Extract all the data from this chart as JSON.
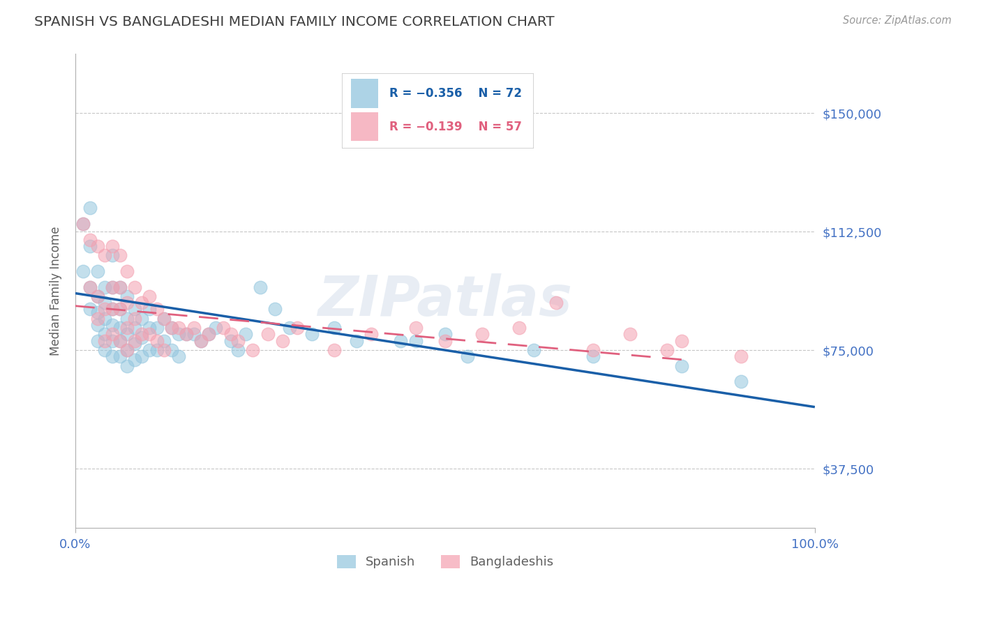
{
  "title": "SPANISH VS BANGLADESHI MEDIAN FAMILY INCOME CORRELATION CHART",
  "source_text": "Source: ZipAtlas.com",
  "ylabel": "Median Family Income",
  "xlim": [
    0.0,
    1.0
  ],
  "ylim": [
    18750,
    168750
  ],
  "yticks": [
    37500,
    75000,
    112500,
    150000
  ],
  "ytick_labels": [
    "$37,500",
    "$75,000",
    "$112,500",
    "$150,000"
  ],
  "xticks": [
    0.0,
    1.0
  ],
  "xtick_labels": [
    "0.0%",
    "100.0%"
  ],
  "spanish_color": "#92c5de",
  "bangladeshi_color": "#f4a0b0",
  "blue_line_color": "#1a5fa8",
  "pink_line_color": "#e0607e",
  "legend_R1": "R = −0.356",
  "legend_N1": "N = 72",
  "legend_R2": "R = −0.139",
  "legend_N2": "N = 57",
  "legend_label1": "Spanish",
  "legend_label2": "Bangladeshis",
  "title_color": "#404040",
  "axis_label_color": "#606060",
  "tick_color": "#4472c4",
  "grid_color": "#c0c0c0",
  "watermark": "ZIPatlas",
  "blue_line_x0": 0.0,
  "blue_line_y0": 93000,
  "blue_line_x1": 1.0,
  "blue_line_y1": 57000,
  "pink_line_x0": 0.0,
  "pink_line_y0": 89000,
  "pink_line_x1": 0.82,
  "pink_line_y1": 72000,
  "spanish_x": [
    0.01,
    0.01,
    0.02,
    0.02,
    0.02,
    0.02,
    0.03,
    0.03,
    0.03,
    0.03,
    0.03,
    0.04,
    0.04,
    0.04,
    0.04,
    0.04,
    0.05,
    0.05,
    0.05,
    0.05,
    0.05,
    0.05,
    0.06,
    0.06,
    0.06,
    0.06,
    0.06,
    0.07,
    0.07,
    0.07,
    0.07,
    0.07,
    0.08,
    0.08,
    0.08,
    0.08,
    0.09,
    0.09,
    0.09,
    0.1,
    0.1,
    0.1,
    0.11,
    0.11,
    0.12,
    0.12,
    0.13,
    0.13,
    0.14,
    0.14,
    0.15,
    0.16,
    0.17,
    0.18,
    0.19,
    0.21,
    0.22,
    0.23,
    0.25,
    0.27,
    0.29,
    0.32,
    0.35,
    0.38,
    0.44,
    0.46,
    0.5,
    0.53,
    0.62,
    0.7,
    0.82,
    0.9
  ],
  "spanish_y": [
    115000,
    100000,
    120000,
    108000,
    95000,
    88000,
    100000,
    92000,
    87000,
    83000,
    78000,
    95000,
    90000,
    85000,
    80000,
    75000,
    105000,
    95000,
    88000,
    83000,
    78000,
    73000,
    95000,
    88000,
    82000,
    78000,
    73000,
    92000,
    85000,
    80000,
    75000,
    70000,
    88000,
    82000,
    77000,
    72000,
    85000,
    79000,
    73000,
    88000,
    82000,
    75000,
    82000,
    75000,
    85000,
    78000,
    82000,
    75000,
    80000,
    73000,
    80000,
    80000,
    78000,
    80000,
    82000,
    78000,
    75000,
    80000,
    95000,
    88000,
    82000,
    80000,
    82000,
    78000,
    78000,
    78000,
    80000,
    73000,
    75000,
    73000,
    70000,
    65000
  ],
  "bangladeshi_x": [
    0.01,
    0.02,
    0.02,
    0.03,
    0.03,
    0.03,
    0.04,
    0.04,
    0.04,
    0.05,
    0.05,
    0.05,
    0.05,
    0.06,
    0.06,
    0.06,
    0.06,
    0.07,
    0.07,
    0.07,
    0.07,
    0.08,
    0.08,
    0.08,
    0.09,
    0.09,
    0.1,
    0.1,
    0.11,
    0.11,
    0.12,
    0.12,
    0.13,
    0.14,
    0.15,
    0.16,
    0.17,
    0.18,
    0.2,
    0.21,
    0.22,
    0.24,
    0.26,
    0.28,
    0.3,
    0.35,
    0.4,
    0.46,
    0.5,
    0.55,
    0.6,
    0.65,
    0.7,
    0.75,
    0.8,
    0.82,
    0.9
  ],
  "bangladeshi_y": [
    115000,
    110000,
    95000,
    108000,
    92000,
    85000,
    105000,
    88000,
    78000,
    108000,
    95000,
    88000,
    80000,
    105000,
    95000,
    88000,
    78000,
    100000,
    90000,
    82000,
    75000,
    95000,
    85000,
    78000,
    90000,
    80000,
    92000,
    80000,
    88000,
    78000,
    85000,
    75000,
    82000,
    82000,
    80000,
    82000,
    78000,
    80000,
    82000,
    80000,
    78000,
    75000,
    80000,
    78000,
    82000,
    75000,
    80000,
    82000,
    78000,
    80000,
    82000,
    90000,
    75000,
    80000,
    75000,
    78000,
    73000
  ]
}
